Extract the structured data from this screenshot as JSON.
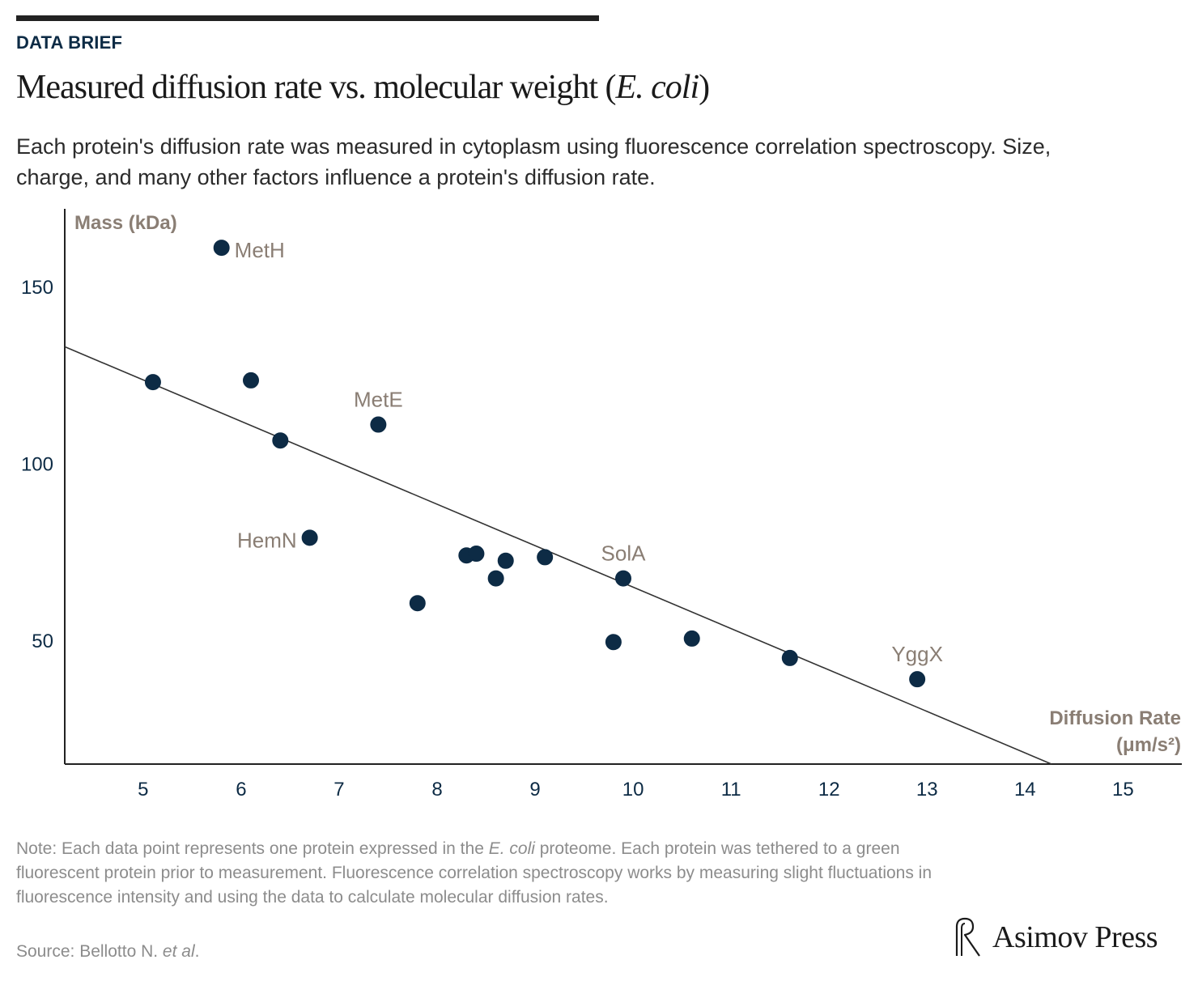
{
  "kicker": "DATA BRIEF",
  "title": {
    "main": "Measured diffusion rate vs. molecular weight (",
    "italic": "E. coli",
    "end": ")"
  },
  "subtitle": "Each protein's diffusion rate was measured in cytoplasm using fluorescence correlation spectroscopy. Size, charge, and many other factors influence a protein's diffusion rate.",
  "note": {
    "part1": "Note: Each data point represents one protein expressed in the ",
    "italic": "E. coli",
    "part2": " proteome. Each protein was tethered to a green fluorescent protein prior to measurement. Fluorescence correlation spectroscopy works by measuring slight fluctuations in fluorescence intensity and using the data to calculate molecular diffusion rates."
  },
  "source": {
    "part1": "Source: Bellotto N. ",
    "italic": "et al",
    "part2": "."
  },
  "brand": "Asimov Press",
  "colors": {
    "point": "#0d2b45",
    "label": "#8a7e74",
    "axis_tick": "#0d2b45",
    "trend": "#333333"
  },
  "chart_data": {
    "type": "scatter",
    "xlabel_line1": "Diffusion Rate",
    "xlabel_line2": "(μm/s²)",
    "ylabel": "Mass (kDa)",
    "xlim": [
      4.2,
      15.6
    ],
    "ylim": [
      15,
      172
    ],
    "xticks": [
      5,
      6,
      7,
      8,
      9,
      10,
      11,
      12,
      13,
      14,
      15
    ],
    "yticks": [
      50,
      100,
      150
    ],
    "points": [
      {
        "x": 5.8,
        "y": 161,
        "label": "MetH"
      },
      {
        "x": 5.1,
        "y": 123,
        "label": ""
      },
      {
        "x": 6.1,
        "y": 123.5,
        "label": ""
      },
      {
        "x": 6.4,
        "y": 106.5,
        "label": ""
      },
      {
        "x": 7.4,
        "y": 111,
        "label": "MetE"
      },
      {
        "x": 6.7,
        "y": 79,
        "label": "HemN"
      },
      {
        "x": 7.8,
        "y": 60.5,
        "label": ""
      },
      {
        "x": 8.3,
        "y": 74,
        "label": ""
      },
      {
        "x": 8.4,
        "y": 74.5,
        "label": ""
      },
      {
        "x": 8.6,
        "y": 67.5,
        "label": ""
      },
      {
        "x": 8.7,
        "y": 72.5,
        "label": ""
      },
      {
        "x": 9.1,
        "y": 73.5,
        "label": ""
      },
      {
        "x": 9.9,
        "y": 67.5,
        "label": "SolA"
      },
      {
        "x": 9.8,
        "y": 49.5,
        "label": ""
      },
      {
        "x": 10.6,
        "y": 50.5,
        "label": ""
      },
      {
        "x": 11.6,
        "y": 45,
        "label": ""
      },
      {
        "x": 12.9,
        "y": 39,
        "label": "YggX"
      }
    ],
    "trendline": {
      "x": [
        4.2,
        14.27
      ],
      "y": [
        133,
        15
      ]
    }
  }
}
